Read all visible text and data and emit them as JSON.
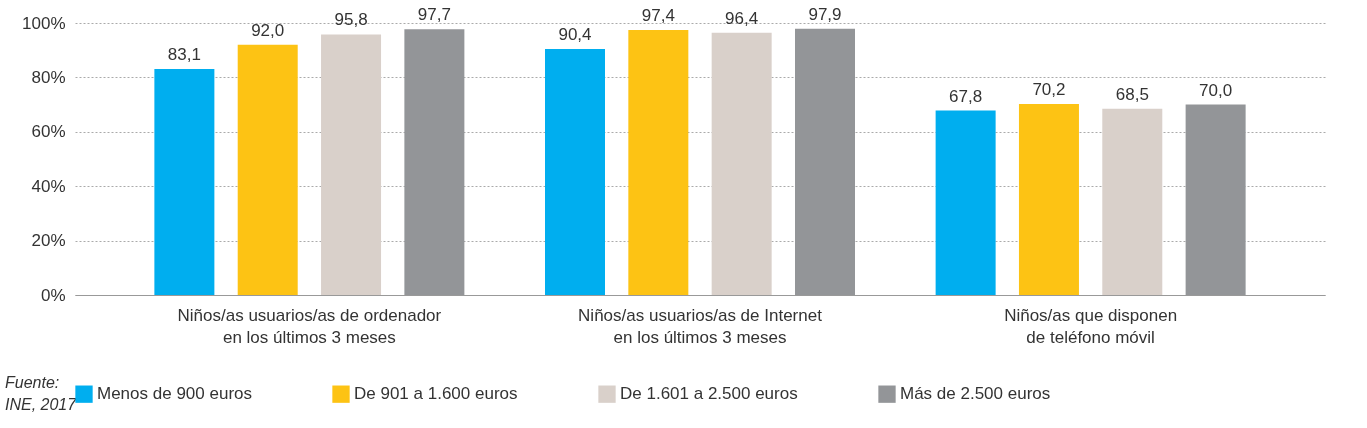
{
  "chart_data": {
    "type": "bar",
    "categories": [
      "Niños/as usuarios/as de ordenador\nen los  últimos 3 meses",
      "Niños/as usuarios/as de Internet\nen los  últimos 3 meses",
      "Niños/as que disponen\nde teléfono móvil"
    ],
    "series": [
      {
        "name": "Menos de 900 euros",
        "color": "#00aeef",
        "values": [
          83.1,
          90.4,
          67.8
        ],
        "value_labels": [
          "83,1",
          "90,4",
          "67,8"
        ]
      },
      {
        "name": "De 901 a 1.600 euros",
        "color": "#fdc314",
        "values": [
          92.0,
          97.4,
          70.2
        ],
        "value_labels": [
          "92,0",
          "97,4",
          "70,2"
        ]
      },
      {
        "name": "De 1.601 a 2.500 euros",
        "color": "#d9d0ca",
        "values": [
          95.8,
          96.4,
          68.5
        ],
        "value_labels": [
          "95,8",
          "96,4",
          "68,5"
        ]
      },
      {
        "name": "Más de 2.500 euros",
        "color": "#939598",
        "values": [
          97.7,
          97.9,
          70.0
        ],
        "value_labels": [
          "97,7",
          "97,9",
          "70,0"
        ]
      }
    ],
    "ylim": [
      0,
      100
    ],
    "yticks": [
      {
        "value": 0,
        "label": "0%"
      },
      {
        "value": 20,
        "label": "20%"
      },
      {
        "value": 40,
        "label": "40%"
      },
      {
        "value": 60,
        "label": "60%"
      },
      {
        "value": 80,
        "label": "80%"
      },
      {
        "value": 100,
        "label": "100%"
      }
    ],
    "grid": "y",
    "legend": "bottom",
    "annotations": [
      "Fuente:\nINE, 2017"
    ]
  }
}
